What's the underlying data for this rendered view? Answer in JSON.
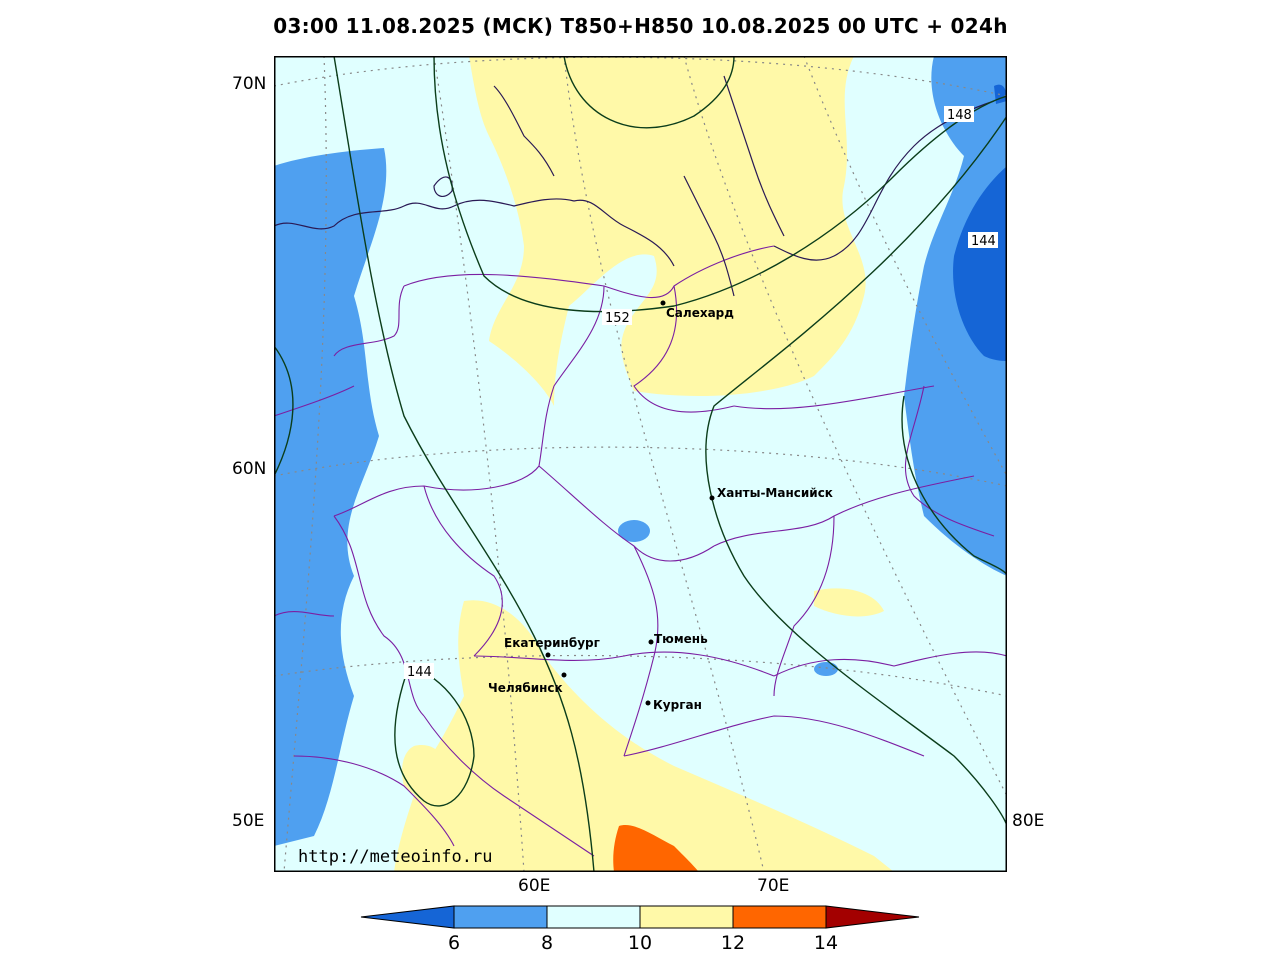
{
  "title": "03:00 11.08.2025 (МСК) T850+H850 10.08.2025 00 UTC + 024h",
  "axis": {
    "lat": [
      "70N",
      "60N"
    ],
    "lon_bottom": [
      "60E",
      "70E"
    ],
    "corner_left": "50E",
    "corner_right": "80E"
  },
  "cities": [
    {
      "name": "Салехард"
    },
    {
      "name": "Ханты-Мансийск"
    },
    {
      "name": "Екатеринбург"
    },
    {
      "name": "Тюмень"
    },
    {
      "name": "Челябинск"
    },
    {
      "name": "Курган"
    }
  ],
  "contours": [
    "152",
    "148",
    "144",
    "144"
  ],
  "watermark": "http://meteoinfo.ru",
  "colorbar": {
    "ticks": [
      "6",
      "8",
      "10",
      "12",
      "14"
    ],
    "colors": [
      "#1565d6",
      "#4fa0f0",
      "#e0ffff",
      "#fff9a8",
      "#ff6600",
      "#a30000"
    ]
  },
  "colors": {
    "t_cold": "#1565d6",
    "t_cool": "#4fa0f0",
    "t_mid": "#e0ffff",
    "t_warm": "#fff9a8",
    "t_hot": "#ff6600",
    "borders": "#7b1fa2",
    "coast": "#2a1a55",
    "isohypse": "#0b3d1a"
  }
}
